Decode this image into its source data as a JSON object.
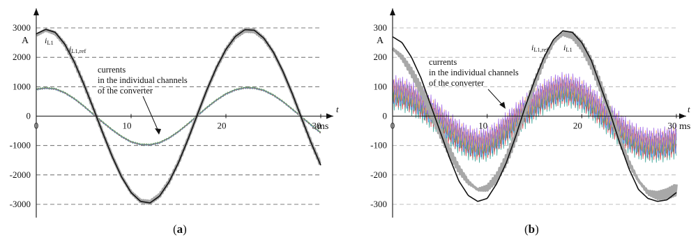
{
  "chart_data": [
    {
      "type": "line",
      "panel_label": "(a)",
      "panel_letter": "a",
      "x_axis_symbol": "t",
      "x_unit": "ms",
      "y_unit": "A",
      "xlim": [
        0,
        30
      ],
      "ylim": [
        -3000,
        3000
      ],
      "x_ticks": [
        0,
        10,
        20,
        30
      ],
      "y_ticks": [
        3000,
        2000,
        1000,
        0,
        -1000,
        -2000,
        -3000
      ],
      "grid": "horizontal dashed",
      "annotation": [
        "currents",
        "in the individual channels",
        "of the converter"
      ],
      "series": [
        {
          "name": "i_L1",
          "label_main": "i",
          "label_sub": "L1",
          "color": "#a8a8a8",
          "x": [
            0,
            1,
            2,
            3,
            4,
            5,
            6,
            7,
            8,
            9,
            10,
            11,
            12,
            13,
            14,
            15,
            16,
            17,
            18,
            19,
            20,
            21,
            22,
            23,
            24,
            25,
            26,
            27,
            28,
            29,
            30
          ],
          "y": [
            2750,
            2930,
            2820,
            2440,
            1840,
            1100,
            280,
            -560,
            -1360,
            -2060,
            -2590,
            -2890,
            -2930,
            -2700,
            -2230,
            -1570,
            -780,
            60,
            890,
            1640,
            2260,
            2700,
            2920,
            2900,
            2640,
            2170,
            1520,
            750,
            -90,
            -910,
            -1660
          ]
        },
        {
          "name": "i_L1,ref",
          "label_main": "i",
          "label_sub": "L1,ref",
          "color": "#111111",
          "x": [
            0,
            1,
            2,
            3,
            4,
            5,
            6,
            7,
            8,
            9,
            10,
            11,
            12,
            13,
            14,
            15,
            16,
            17,
            18,
            19,
            20,
            21,
            22,
            23,
            24,
            25,
            26,
            27,
            28,
            29,
            30
          ],
          "y": [
            2800,
            2950,
            2850,
            2450,
            1850,
            1100,
            280,
            -560,
            -1370,
            -2070,
            -2600,
            -2900,
            -2950,
            -2720,
            -2240,
            -1580,
            -790,
            60,
            900,
            1650,
            2270,
            2710,
            2940,
            2920,
            2650,
            2180,
            1530,
            760,
            -90,
            -920,
            -1670
          ]
        },
        {
          "name": "channel currents",
          "colors": [
            "#2a9d8f",
            "#e63946",
            "#3a86ff",
            "#6a994e"
          ],
          "x": [
            0,
            1,
            2,
            3,
            4,
            5,
            6,
            7,
            8,
            9,
            10,
            11,
            12,
            13,
            14,
            15,
            16,
            17,
            18,
            19,
            20,
            21,
            22,
            23,
            24,
            25,
            26,
            27,
            28,
            29,
            30
          ],
          "y": [
            920,
            960,
            930,
            800,
            600,
            350,
            70,
            -200,
            -460,
            -690,
            -870,
            -960,
            -970,
            -900,
            -740,
            -520,
            -260,
            20,
            300,
            550,
            760,
            900,
            970,
            960,
            880,
            720,
            500,
            240,
            -30,
            -300,
            -560
          ]
        }
      ]
    },
    {
      "type": "line",
      "panel_label": "(b)",
      "panel_letter": "b",
      "x_axis_symbol": "t",
      "x_unit": "ms",
      "y_unit": "A",
      "xlim": [
        0,
        30
      ],
      "ylim": [
        -300,
        300
      ],
      "x_ticks": [
        0,
        10,
        20,
        30
      ],
      "y_ticks": [
        300,
        200,
        100,
        0,
        -100,
        -200,
        -300
      ],
      "grid": "horizontal dashed",
      "annotation": [
        "currents",
        "in the individual channels",
        "of the converter"
      ],
      "series": [
        {
          "name": "i_L1",
          "label_main": "i",
          "label_sub": "L1",
          "color": "#a8a8a8",
          "x": [
            0,
            1,
            2,
            3,
            4,
            5,
            6,
            7,
            8,
            9,
            10,
            11,
            12,
            13,
            14,
            15,
            16,
            17,
            18,
            19,
            20,
            21,
            22,
            23,
            24,
            25,
            26,
            27,
            28,
            29,
            30
          ],
          "y": [
            230,
            200,
            150,
            90,
            20,
            -50,
            -120,
            -180,
            -225,
            -250,
            -245,
            -210,
            -150,
            -70,
            20,
            110,
            190,
            250,
            280,
            275,
            240,
            180,
            100,
            10,
            -80,
            -160,
            -220,
            -260,
            -270,
            -265,
            -250
          ]
        },
        {
          "name": "i_L1,ref",
          "label_main": "i",
          "label_sub": "L1,ref",
          "color": "#111111",
          "x": [
            0,
            1,
            2,
            3,
            4,
            5,
            6,
            7,
            8,
            9,
            10,
            11,
            12,
            13,
            14,
            15,
            16,
            17,
            18,
            19,
            20,
            21,
            22,
            23,
            24,
            25,
            26,
            27,
            28,
            29,
            30
          ],
          "y": [
            270,
            250,
            200,
            130,
            40,
            -50,
            -140,
            -220,
            -270,
            -290,
            -280,
            -230,
            -160,
            -70,
            30,
            120,
            200,
            260,
            290,
            285,
            250,
            190,
            100,
            10,
            -90,
            -180,
            -250,
            -280,
            -290,
            -285,
            -260
          ]
        },
        {
          "name": "channel currents",
          "colors": [
            "#2a9d8f",
            "#e63946",
            "#3a86ff",
            "#6a994e",
            "#f4a261",
            "#9b5de5"
          ],
          "x": [
            0,
            1,
            2,
            3,
            4,
            5,
            6,
            7,
            8,
            9,
            10,
            11,
            12,
            13,
            14,
            15,
            16,
            17,
            18,
            19,
            20,
            21,
            22,
            23,
            24,
            25,
            26,
            27,
            28,
            29,
            30
          ],
          "y": [
            85,
            80,
            65,
            45,
            20,
            -10,
            -40,
            -65,
            -85,
            -95,
            -90,
            -70,
            -40,
            -10,
            20,
            45,
            70,
            85,
            95,
            90,
            75,
            50,
            20,
            -10,
            -40,
            -65,
            -85,
            -95,
            -95,
            -90,
            -80
          ]
        }
      ]
    }
  ]
}
